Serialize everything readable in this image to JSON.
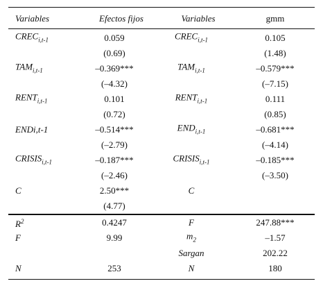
{
  "table": {
    "header": [
      "Variables",
      "Efectos fijos",
      "Variables",
      "gmm"
    ],
    "sections": [
      [
        [
          {
            "name": "CREC",
            "sub": "i,t-1"
          },
          "0.059",
          {
            "name": "CREC",
            "sub": "i,t-1"
          },
          "0.105"
        ],
        [
          null,
          "(0.69)",
          null,
          "(1.48)"
        ],
        [
          {
            "name": "TAM",
            "sub": "i,t-1"
          },
          "–0.369***",
          {
            "name": "TAM",
            "sub": "i,t-1"
          },
          "–0.579***"
        ],
        [
          null,
          "(–4.32)",
          null,
          "(–7.15)"
        ],
        [
          {
            "name": "RENT",
            "sub": "i,t-1"
          },
          "0.101",
          {
            "name": "RENT",
            "sub": "i,t-1"
          },
          "0.111"
        ],
        [
          null,
          "(0.72)",
          null,
          "(0.85)"
        ],
        [
          "ENDi,t-1",
          "–0.514***",
          {
            "name": "END",
            "sub": "i,t-1"
          },
          "–0.681***"
        ],
        [
          null,
          "(–2.79)",
          null,
          "(–4.14)"
        ],
        [
          {
            "name": "CRISIS",
            "sub": "i,t-1"
          },
          "–0.187***",
          {
            "name": "CRISIS",
            "sub": "i,t-1"
          },
          "–0.185***"
        ],
        [
          null,
          "(–2.46)",
          null,
          "(–3.50)"
        ],
        [
          "C",
          "2.50***",
          "C",
          null
        ],
        [
          null,
          "(4.77)",
          null,
          null
        ]
      ],
      [
        [
          {
            "name": "R",
            "sup": "2"
          },
          "0.4247",
          "F",
          "247.88***"
        ],
        [
          "F",
          "9.99",
          {
            "name": "m",
            "sub": "2"
          },
          "–1.57"
        ],
        [
          null,
          null,
          "Sargan",
          "202.22"
        ],
        [
          "N",
          "253",
          "N",
          "180"
        ]
      ]
    ]
  }
}
